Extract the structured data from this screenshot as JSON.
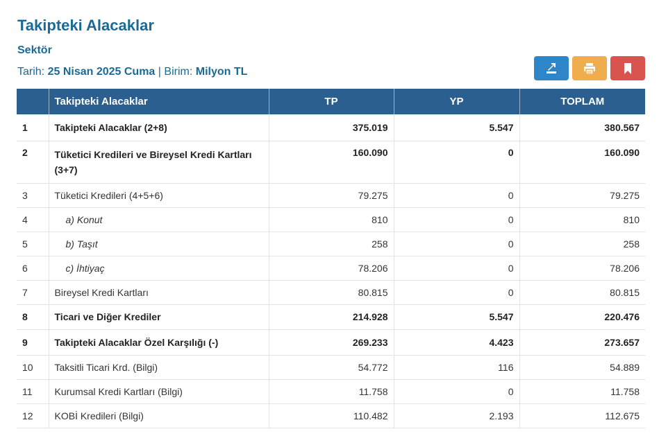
{
  "header": {
    "title": "Takipteki Alacaklar",
    "subtitle": "Sektör",
    "date_label": "Tarih:",
    "date_value": "25 Nisan 2025 Cuma",
    "separator": "|",
    "unit_label": "Birim:",
    "unit_value": "Milyon TL"
  },
  "actions": {
    "excel_icon": "export-excel-icon",
    "print_icon": "printer-icon",
    "bookmark_icon": "bookmark-icon",
    "colors": {
      "excel": "#2e86c9",
      "print": "#f0ad4e",
      "bookmark": "#d9534f"
    }
  },
  "table": {
    "columns": [
      "",
      "Takipteki Alacaklar",
      "TP",
      "YP",
      "TOPLAM"
    ],
    "rows": [
      {
        "no": "1",
        "label": "Takipteki Alacaklar (2+8)",
        "tp": "375.019",
        "yp": "5.547",
        "toplam": "380.567"
      },
      {
        "no": "2",
        "label": "Tüketici Kredileri ve Bireysel Kredi Kartları (3+7)",
        "tp": "160.090",
        "yp": "0",
        "toplam": "160.090"
      },
      {
        "no": "3",
        "label": "Tüketici Kredileri (4+5+6)",
        "tp": "79.275",
        "yp": "0",
        "toplam": "79.275"
      },
      {
        "no": "4",
        "label": "a) Konut",
        "tp": "810",
        "yp": "0",
        "toplam": "810"
      },
      {
        "no": "5",
        "label": "b) Taşıt",
        "tp": "258",
        "yp": "0",
        "toplam": "258"
      },
      {
        "no": "6",
        "label": "c) İhtiyaç",
        "tp": "78.206",
        "yp": "0",
        "toplam": "78.206"
      },
      {
        "no": "7",
        "label": "Bireysel Kredi Kartları",
        "tp": "80.815",
        "yp": "0",
        "toplam": "80.815"
      },
      {
        "no": "8",
        "label": "Ticari ve Diğer Krediler",
        "tp": "214.928",
        "yp": "5.547",
        "toplam": "220.476"
      },
      {
        "no": "9",
        "label": "Takipteki Alacaklar Özel Karşılığı (-)",
        "tp": "269.233",
        "yp": "4.423",
        "toplam": "273.657"
      },
      {
        "no": "10",
        "label": "Taksitli Ticari Krd. (Bilgi)",
        "tp": "54.772",
        "yp": "116",
        "toplam": "54.889"
      },
      {
        "no": "11",
        "label": "Kurumsal Kredi Kartları (Bilgi)",
        "tp": "11.758",
        "yp": "0",
        "toplam": "11.758"
      },
      {
        "no": "12",
        "label": "KOBİ Kredileri (Bilgi)",
        "tp": "110.482",
        "yp": "2.193",
        "toplam": "112.675"
      }
    ]
  }
}
